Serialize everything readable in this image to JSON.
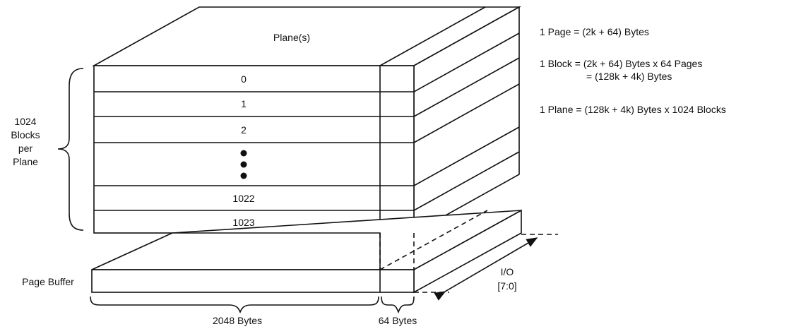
{
  "plane": {
    "label": "Plane(s)",
    "blocks": [
      "0",
      "1",
      "2",
      "1022",
      "1023"
    ]
  },
  "blocks_per_plane": [
    "1024",
    "Blocks",
    "per",
    "Plane"
  ],
  "page_buffer": {
    "label": "Page Buffer"
  },
  "io": {
    "label_1": "I/O",
    "label_2": "[7:0]"
  },
  "dimensions": {
    "data_width": "2048 Bytes",
    "spare_width": "64 Bytes"
  },
  "formulas": {
    "page": "1 Page = (2k + 64) Bytes",
    "block_1": "1 Block = (2k + 64) Bytes x 64 Pages",
    "block_2": "= (128k + 4k) Bytes",
    "plane": "1 Plane = (128k + 4k) Bytes x 1024 Blocks"
  }
}
